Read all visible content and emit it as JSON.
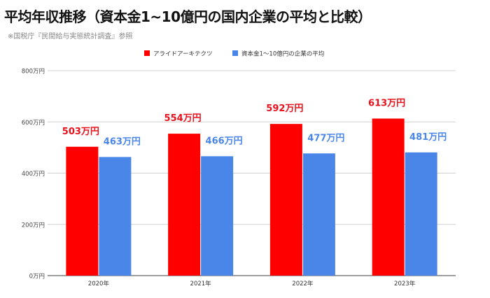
{
  "title": "平均年収推移（資本金1~10億円の国内企業の平均と比較）",
  "source": "※国税庁『民間給与実態統計調査』参照",
  "chart_data": {
    "type": "bar",
    "categories": [
      "2020年",
      "2021年",
      "2022年",
      "2023年"
    ],
    "series": [
      {
        "name": "アライドアーキテクツ",
        "values": [
          503,
          554,
          592,
          613
        ],
        "color": "#ff0000",
        "label_color": "#e8111b"
      },
      {
        "name": "資本金1～10億円の企業の平均",
        "values": [
          463,
          466,
          477,
          481
        ],
        "color": "#4a86e8",
        "label_color": "#4a86e8"
      }
    ],
    "ylim": [
      0,
      800
    ],
    "yticks": [
      0,
      200,
      400,
      600,
      800
    ],
    "ytick_labels": [
      "0万円",
      "200万円",
      "400万円",
      "600万円",
      "800万円"
    ],
    "value_suffix": "万円",
    "grid": true,
    "legend_position": "top-center"
  }
}
